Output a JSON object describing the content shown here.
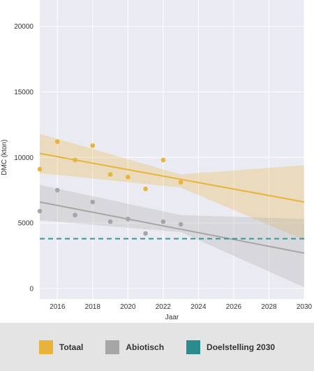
{
  "chart_data": {
    "type": "scatter",
    "xlabel": "Jaar",
    "ylabel": "DMC (kton)",
    "xlim": [
      2015,
      2030
    ],
    "ylim": [
      -800,
      22000
    ],
    "x_ticks": [
      2016,
      2018,
      2020,
      2022,
      2024,
      2026,
      2028,
      2030
    ],
    "y_ticks": [
      0,
      5000,
      10000,
      15000,
      20000
    ],
    "grid": true,
    "legend_position": "bottom",
    "series": [
      {
        "name": "Totaal",
        "color": "#e8b33a",
        "points": [
          {
            "x": 2015,
            "y": 9100
          },
          {
            "x": 2016,
            "y": 11200
          },
          {
            "x": 2017,
            "y": 9800
          },
          {
            "x": 2018,
            "y": 10900
          },
          {
            "x": 2019,
            "y": 8700
          },
          {
            "x": 2020,
            "y": 8500
          },
          {
            "x": 2021,
            "y": 7600
          },
          {
            "x": 2022,
            "y": 9800
          },
          {
            "x": 2023,
            "y": 8100
          }
        ],
        "trend": {
          "x": [
            2015,
            2030
          ],
          "y": [
            10300,
            6600
          ]
        },
        "band": {
          "x": [
            2015,
            2023,
            2030
          ],
          "lower": [
            8800,
            7700,
            3700
          ],
          "upper": [
            11800,
            8700,
            9400
          ]
        }
      },
      {
        "name": "Abiotisch",
        "color": "#a6a6a6",
        "points": [
          {
            "x": 2015,
            "y": 5900
          },
          {
            "x": 2016,
            "y": 7500
          },
          {
            "x": 2017,
            "y": 5600
          },
          {
            "x": 2018,
            "y": 6600
          },
          {
            "x": 2019,
            "y": 5100
          },
          {
            "x": 2020,
            "y": 5300
          },
          {
            "x": 2021,
            "y": 4200
          },
          {
            "x": 2022,
            "y": 5100
          },
          {
            "x": 2023,
            "y": 4900
          }
        ],
        "trend": {
          "x": [
            2015,
            2030
          ],
          "y": [
            6600,
            2700
          ]
        },
        "band": {
          "x": [
            2015,
            2023,
            2030
          ],
          "lower": [
            5200,
            4300,
            100
          ],
          "upper": [
            7900,
            5600,
            5300
          ]
        }
      }
    ],
    "reference_lines": [
      {
        "name": "Doelstelling 2030",
        "y": 3800,
        "color": "#2a9a9a",
        "style": "dashed"
      }
    ]
  },
  "legend": {
    "items": [
      {
        "label": "Totaal",
        "color": "#e8b33a"
      },
      {
        "label": "Abiotisch",
        "color": "#a6a6a6"
      },
      {
        "label": "Doelstelling 2030",
        "color": "#2a8c8c"
      }
    ]
  }
}
